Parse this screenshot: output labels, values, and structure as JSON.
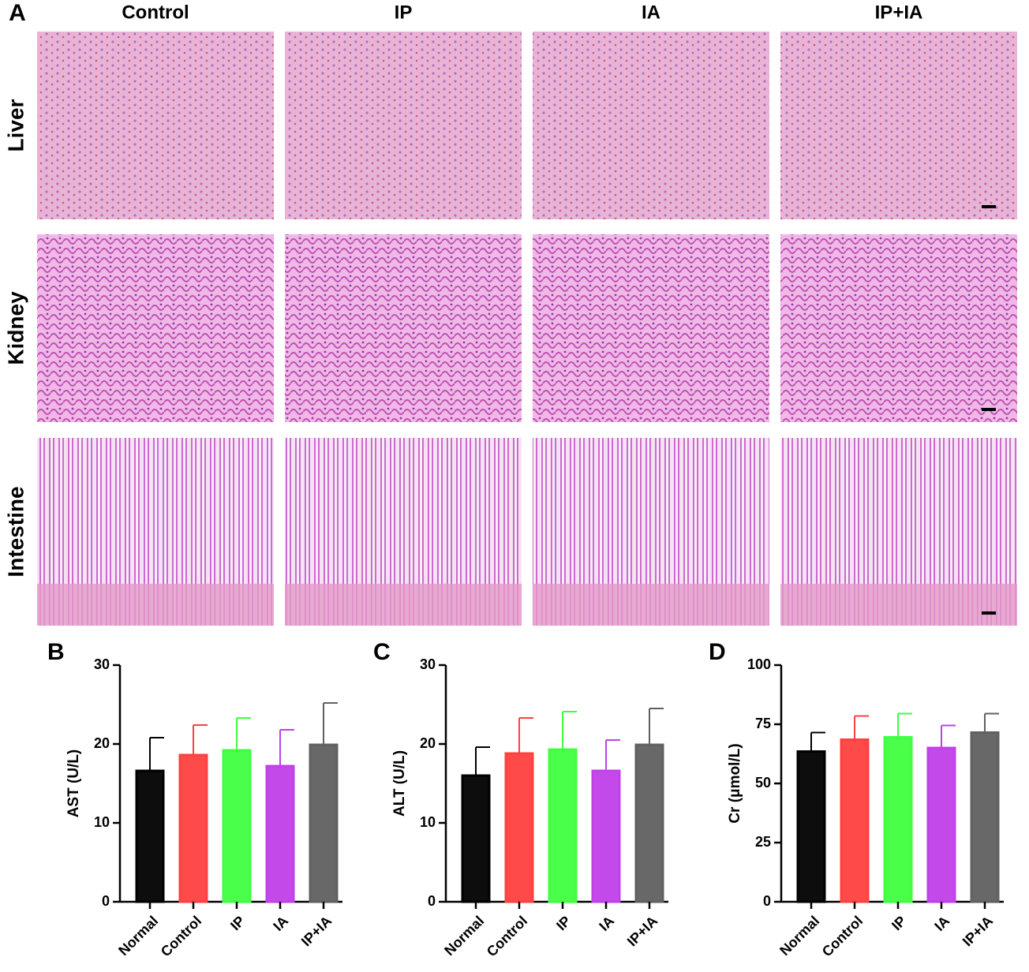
{
  "panel_a": {
    "label": "A",
    "columns": [
      "Control",
      "IP",
      "IA",
      "IP+IA"
    ],
    "rows": [
      "Liver",
      "Kidney",
      "Intestine"
    ]
  },
  "chart_data": [
    {
      "type": "bar",
      "panel": "B",
      "y_label": "AST (U/L)",
      "categories": [
        "Normal",
        "Control",
        "IP",
        "IA",
        "IP+IA"
      ],
      "values": [
        16.6,
        18.6,
        19.2,
        17.2,
        19.9
      ],
      "errors": [
        4.2,
        3.8,
        4.1,
        4.6,
        5.3
      ],
      "colors": [
        "#000000",
        "#ff4040",
        "#40ff40",
        "#c040e8",
        "#606060"
      ],
      "ylim": [
        0,
        30
      ],
      "yticks": [
        0,
        10,
        20,
        30
      ]
    },
    {
      "type": "bar",
      "panel": "C",
      "y_label": "ALT (U/L)",
      "categories": [
        "Normal",
        "Control",
        "IP",
        "IA",
        "IP+IA"
      ],
      "values": [
        16.0,
        18.8,
        19.3,
        16.6,
        19.9
      ],
      "errors": [
        3.6,
        4.5,
        4.8,
        3.9,
        4.6
      ],
      "colors": [
        "#000000",
        "#ff4040",
        "#40ff40",
        "#c040e8",
        "#606060"
      ],
      "ylim": [
        0,
        30
      ],
      "yticks": [
        0,
        10,
        20,
        30
      ]
    },
    {
      "type": "bar",
      "panel": "D",
      "y_label": "Cr (μmol/L)",
      "categories": [
        "Normal",
        "Control",
        "IP",
        "IA",
        "IP+IA"
      ],
      "values": [
        63.5,
        68.5,
        69.5,
        65,
        71.5
      ],
      "errors": [
        8,
        10,
        10,
        9.5,
        8
      ],
      "colors": [
        "#000000",
        "#ff4040",
        "#40ff40",
        "#c040e8",
        "#606060"
      ],
      "ylim": [
        0,
        100
      ],
      "yticks": [
        0,
        25,
        50,
        75,
        100
      ]
    }
  ]
}
